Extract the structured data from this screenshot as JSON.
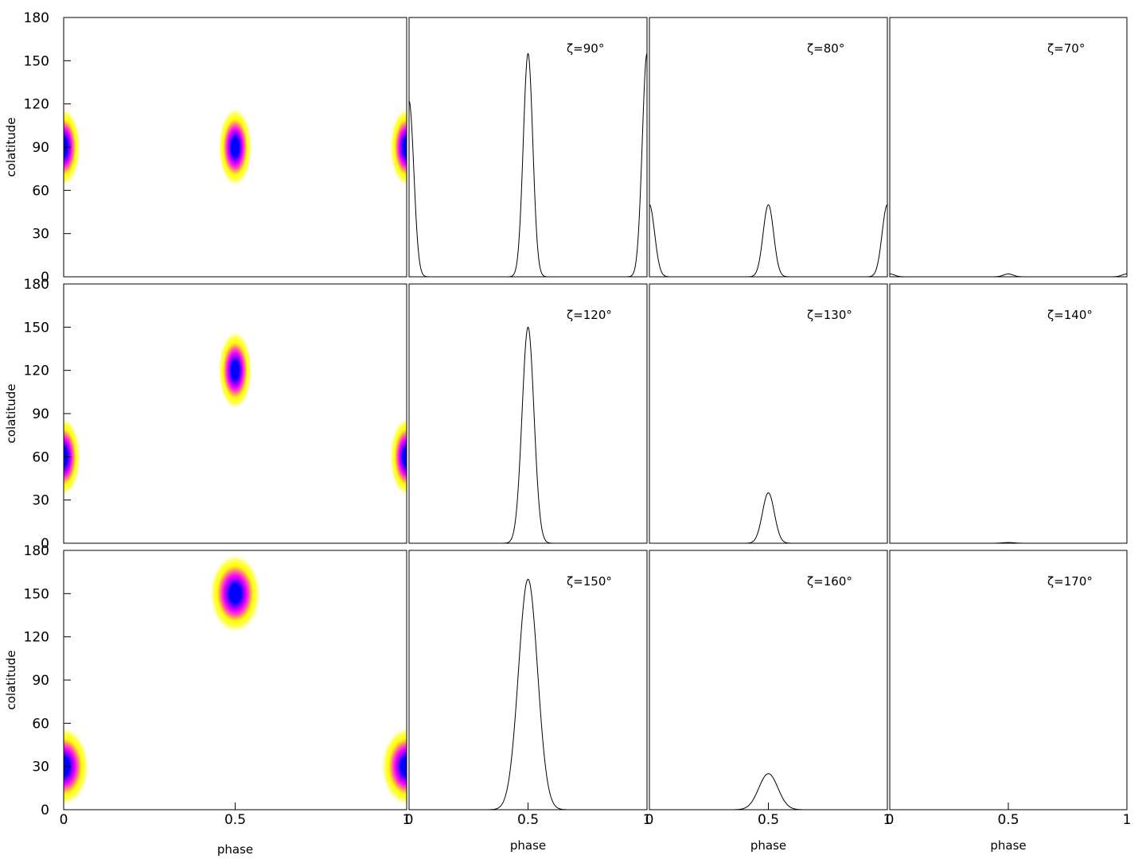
{
  "chart_data": {
    "type": "heatmap+line",
    "xlabel": "phase",
    "ylabel": "colatitude",
    "x_ticks": [
      "0",
      "0.5",
      "1"
    ],
    "y_ticks": [
      "0",
      "30",
      "60",
      "90",
      "120",
      "150",
      "180"
    ],
    "xlim": [
      0,
      1
    ],
    "ylim": [
      0,
      180
    ],
    "colormap": [
      "#ffffff",
      "#ffff00",
      "#ff00ff",
      "#0000ff"
    ],
    "rows": [
      {
        "map": {
          "spots": [
            {
              "phase": 0.0,
              "colatitude": 90
            },
            {
              "phase": 0.5,
              "colatitude": 90
            },
            {
              "phase": 1.0,
              "colatitude": 90
            }
          ],
          "width_phase": 0.05,
          "width_colat": 12
        },
        "profiles": [
          {
            "label": "ζ=90°",
            "peaks": [
              {
                "phase": 0.0,
                "height": 122,
                "width": 0.02
              },
              {
                "phase": 0.5,
                "height": 155,
                "width": 0.02
              },
              {
                "phase": 1.0,
                "height": 155,
                "width": 0.02
              }
            ]
          },
          {
            "label": "ζ=80°",
            "peaks": [
              {
                "phase": 0.0,
                "height": 50,
                "width": 0.022
              },
              {
                "phase": 0.5,
                "height": 50,
                "width": 0.022
              },
              {
                "phase": 1.0,
                "height": 50,
                "width": 0.022
              }
            ]
          },
          {
            "label": "ζ=70°",
            "peaks": [
              {
                "phase": 0.0,
                "height": 2,
                "width": 0.02
              },
              {
                "phase": 0.5,
                "height": 2,
                "width": 0.02
              },
              {
                "phase": 1.0,
                "height": 2,
                "width": 0.02
              }
            ]
          }
        ]
      },
      {
        "map": {
          "spots": [
            {
              "phase": 0.0,
              "colatitude": 60
            },
            {
              "phase": 0.5,
              "colatitude": 120
            },
            {
              "phase": 1.0,
              "colatitude": 60
            }
          ],
          "width_phase": 0.05,
          "width_colat": 12
        },
        "profiles": [
          {
            "label": "ζ=120°",
            "peaks": [
              {
                "phase": 0.5,
                "height": 150,
                "width": 0.025
              }
            ]
          },
          {
            "label": "ζ=130°",
            "peaks": [
              {
                "phase": 0.5,
                "height": 35,
                "width": 0.025
              }
            ]
          },
          {
            "label": "ζ=140°",
            "peaks": [
              {
                "phase": 0.5,
                "height": 0.5,
                "width": 0.025
              }
            ]
          }
        ]
      },
      {
        "map": {
          "spots": [
            {
              "phase": 0.0,
              "colatitude": 30
            },
            {
              "phase": 0.5,
              "colatitude": 150
            },
            {
              "phase": 1.0,
              "colatitude": 30
            }
          ],
          "width_phase": 0.075,
          "width_colat": 12
        },
        "profiles": [
          {
            "label": "ζ=150°",
            "peaks": [
              {
                "phase": 0.5,
                "height": 160,
                "width": 0.04
              }
            ]
          },
          {
            "label": "ζ=160°",
            "peaks": [
              {
                "phase": 0.5,
                "height": 25,
                "width": 0.04
              }
            ]
          },
          {
            "label": "ζ=170°",
            "peaks": []
          }
        ]
      }
    ]
  }
}
